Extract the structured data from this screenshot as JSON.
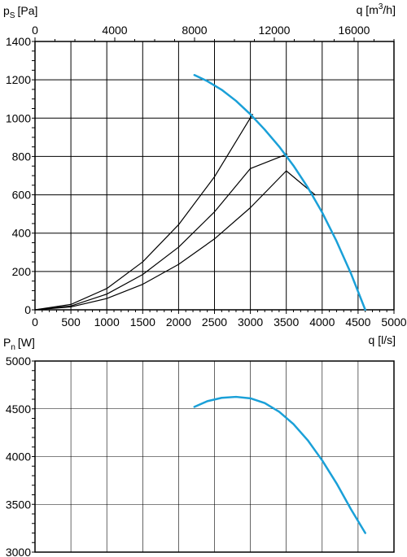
{
  "colors": {
    "curve": "#1aa0d8",
    "system_curve": "#000000",
    "grid": "#000000",
    "background": "#ffffff"
  },
  "chart_data": [
    {
      "type": "line",
      "ylabel_main": "p",
      "ylabel_sub": "S",
      "ylabel_unit": "[Pa]",
      "xlabel": "q [l/s]",
      "xlabel_top_prefix": "q [m",
      "xlabel_top_sup": "3",
      "xlabel_top_suffix": "/h]",
      "xlim": [
        0,
        5000
      ],
      "ylim": [
        0,
        1400
      ],
      "x_ticks": [
        "0",
        "500",
        "1000",
        "1500",
        "2000",
        "2500",
        "3000",
        "3500",
        "4000",
        "4500",
        "5000"
      ],
      "y_ticks": [
        "0",
        "200",
        "400",
        "600",
        "800",
        "1000",
        "1200",
        "1400"
      ],
      "top_ticks": [
        {
          "label": "0",
          "value": 0
        },
        {
          "label": "4000",
          "value": 4000
        },
        {
          "label": "8000",
          "value": 8000
        },
        {
          "label": "12000",
          "value": 12000
        },
        {
          "label": "16000",
          "value": 16000
        }
      ],
      "grid": true,
      "series": [
        {
          "role": "fan curve",
          "x": [
            2220,
            2400,
            2600,
            2800,
            3000,
            3200,
            3400,
            3600,
            3800,
            4000,
            4200,
            4400,
            4600
          ],
          "y": [
            1225,
            1193,
            1148,
            1090,
            1020,
            940,
            852,
            752,
            638,
            508,
            358,
            190,
            0
          ]
        },
        {
          "role": "system curve",
          "x": [
            0,
            500,
            1000,
            1500,
            2000,
            2500,
            3030
          ],
          "y": [
            0,
            28,
            111,
            250,
            444,
            694,
            1020
          ]
        },
        {
          "role": "system curve",
          "x": [
            0,
            500,
            1000,
            1500,
            2000,
            2500,
            3000,
            3510
          ],
          "y": [
            0,
            20,
            82,
            184,
            327,
            511,
            737,
            812
          ]
        },
        {
          "role": "system curve",
          "x": [
            0,
            500,
            1000,
            1500,
            2000,
            2500,
            3000,
            3500,
            3900
          ],
          "y": [
            0,
            15,
            59,
            133,
            237,
            370,
            533,
            725,
            600
          ]
        }
      ]
    },
    {
      "type": "line",
      "ylabel_main": "P",
      "ylabel_sub": "n",
      "ylabel_unit": "[W]",
      "xlim": [
        0,
        5000
      ],
      "ylim": [
        3000,
        5000
      ],
      "y_ticks": [
        "3000",
        "3500",
        "4000",
        "4500",
        "5000"
      ],
      "grid": true,
      "series": [
        {
          "role": "power curve",
          "x": [
            2220,
            2400,
            2600,
            2800,
            3000,
            3200,
            3400,
            3600,
            3800,
            4000,
            4200,
            4400,
            4600
          ],
          "y": [
            4520,
            4580,
            4615,
            4625,
            4610,
            4560,
            4470,
            4340,
            4170,
            3960,
            3720,
            3450,
            3200
          ]
        }
      ]
    }
  ]
}
